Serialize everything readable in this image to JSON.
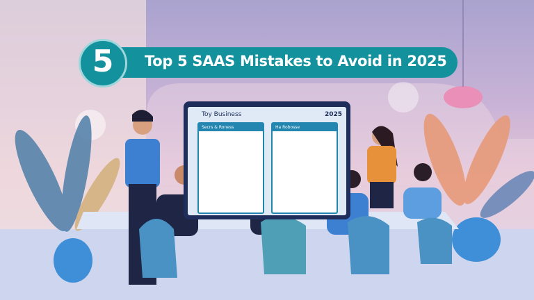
{
  "banner": {
    "number": "5",
    "title": "Top 5 SAAS Mistakes to Avoid in 2025"
  },
  "screen": {
    "title": "Toy Business",
    "year": "2025",
    "panel_left": "Secrs & Roness",
    "panel_right": "Ha Robosse"
  },
  "colors": {
    "banner": "#13929e",
    "monitor": "#1e2d5a",
    "accent": "#2386b0"
  }
}
